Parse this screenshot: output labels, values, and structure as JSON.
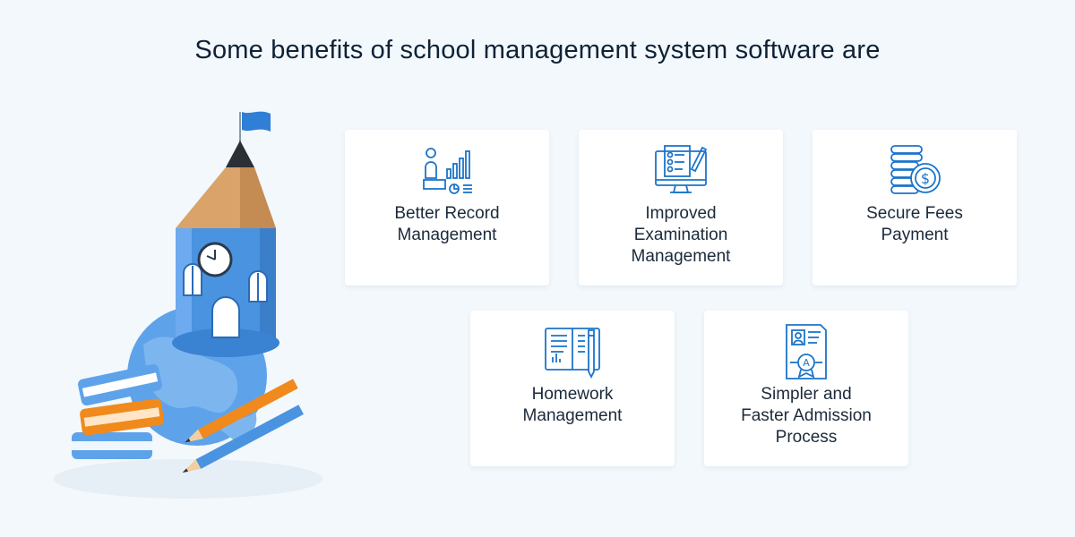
{
  "title": "Some benefits of school management system software are",
  "cards": [
    {
      "label": "Better Record\nManagement",
      "icon": "record-management-icon"
    },
    {
      "label": "Improved\nExamination\nManagement",
      "icon": "examination-icon"
    },
    {
      "label": "Secure Fees\nPayment",
      "icon": "coins-icon"
    },
    {
      "label": "Homework\nManagement",
      "icon": "homework-book-icon"
    },
    {
      "label": "Simpler and\nFaster Admission\nProcess",
      "icon": "admission-certificate-icon"
    }
  ],
  "colors": {
    "background": "#f3f8fc",
    "card": "#ffffff",
    "icon_blue": "#1b74c9",
    "title": "#0f2236",
    "illustration_blue": "#4a93e0",
    "pencil_orange": "#f08a1c"
  },
  "illustration": {
    "name": "pencil-school-tower-illustration",
    "clock_time": "10:00"
  }
}
